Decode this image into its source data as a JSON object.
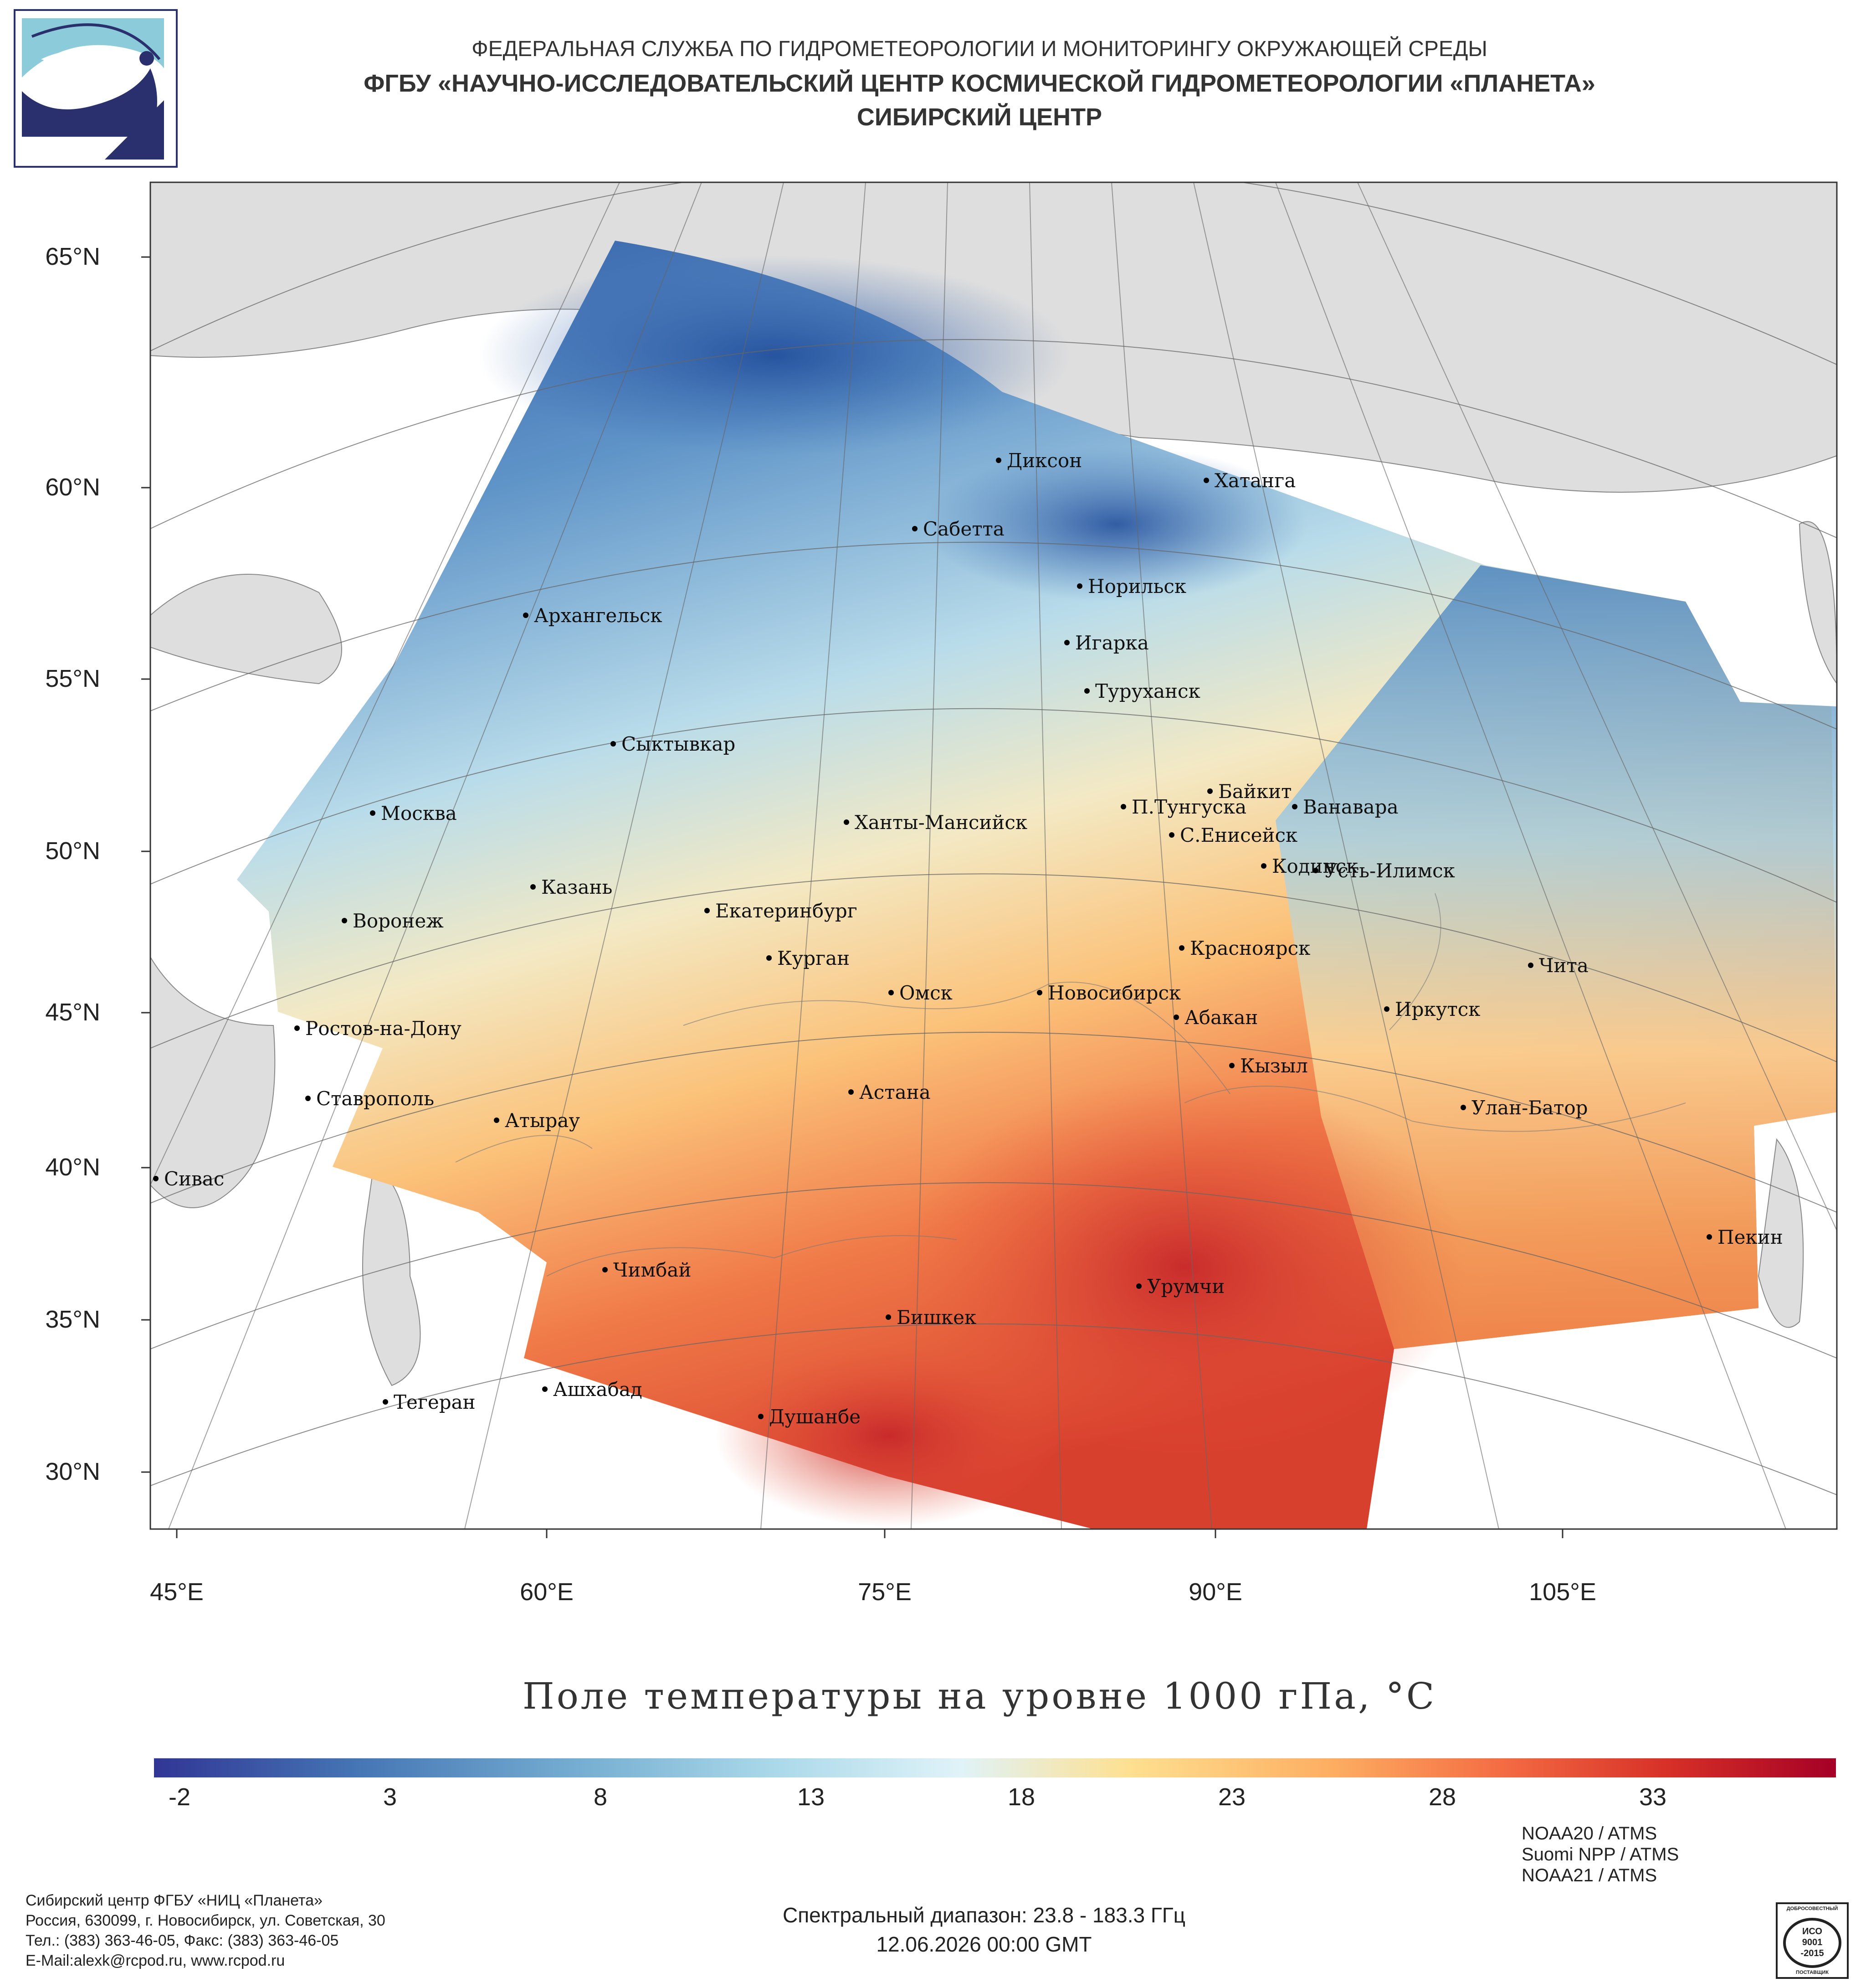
{
  "header": {
    "line1": "ФЕДЕРАЛЬНАЯ СЛУЖБА ПО ГИДРОМЕТЕОРОЛОГИИ И МОНИТОРИНГУ ОКРУЖАЮЩЕЙ СРЕДЫ",
    "line2": "ФГБУ «НАУЧНО-ИССЛЕДОВАТЕЛЬСКИЙ ЦЕНТР КОСМИЧЕСКОЙ ГИДРОМЕТЕОРОЛОГИИ «ПЛАНЕТА»",
    "line3": "СИБИРСКИЙ ЦЕНТР"
  },
  "map": {
    "lat_labels": [
      "65°N",
      "60°N",
      "55°N",
      "50°N",
      "45°N",
      "40°N",
      "35°N",
      "30°N"
    ],
    "lon_labels": [
      "45°E",
      "60°E",
      "75°E",
      "90°E",
      "105°E"
    ],
    "cities": [
      "Диксон",
      "Хатанга",
      "Сабетта",
      "Норильск",
      "Архангельск",
      "Игарка",
      "Туруханск",
      "Сыктывкар",
      "Байкит",
      "Москва",
      "Ханты-Мансийск",
      "П.Тунгуска",
      "Ванавара",
      "С.Енисейск",
      "Кодинск",
      "Усть-Илимск",
      "Казань",
      "Екатеринбург",
      "Воронеж",
      "Красноярск",
      "Курган",
      "Чита",
      "Омск",
      "Новосибирск",
      "Иркутск",
      "Абакан",
      "Ростов-на-Дону",
      "Кызыл",
      "Ставрополь",
      "Астана",
      "Улан-Батор",
      "Атырау",
      "Сивас",
      "Пекин",
      "Чимбай",
      "Урумчи",
      "Бишкек",
      "Ашхабад",
      "Тегеран",
      "Душанбе"
    ]
  },
  "title": "Поле температуры на уровне 1000 гПа, °C",
  "colorbar": {
    "ticks": [
      "-2",
      "3",
      "8",
      "13",
      "18",
      "23",
      "28",
      "33"
    ],
    "min": -3,
    "max": 37,
    "colors": [
      "#313695",
      "#4575b4",
      "#74add1",
      "#abd9e9",
      "#e0f3f8",
      "#fee090",
      "#fdae61",
      "#f46d43",
      "#d73027",
      "#a50026"
    ]
  },
  "footer": {
    "org1": "Сибирский центр ФГБУ «НИЦ «Планета»",
    "org2": "Россия, 630099, г. Новосибирск, ул. Советская, 30",
    "org3": "Тел.: (383) 363-46-05, Факс: (383) 363-46-05",
    "org4": "E-Mail:alexk@rcpod.ru, www.rcpod.ru",
    "spectral": "Спектральный диапазон: 23.8 - 183.3 ГГц",
    "datetime": "12.06.2026 00:00 GMT",
    "sensor1": "NOAA20 / ATMS",
    "sensor2": "Suomi NPP / ATMS",
    "sensor3": "NOAA21 / ATMS",
    "iso_top": "ДОБРОСОВЕСТНЫЙ",
    "iso_mid1": "ИСО",
    "iso_mid2": "9001",
    "iso_mid3": "-2015",
    "iso_bottom": "ПОСТАВЩИК"
  }
}
